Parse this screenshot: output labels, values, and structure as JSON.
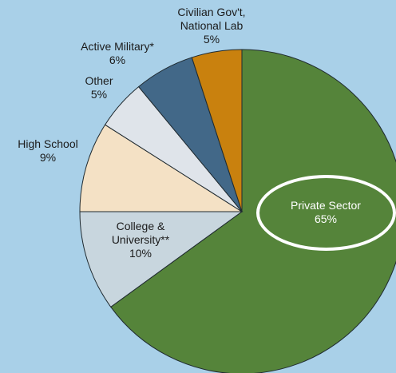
{
  "chart_data": {
    "type": "pie",
    "title": "",
    "slices": [
      {
        "label": "Private Sector\n65%",
        "value": 65,
        "color": "#55843a"
      },
      {
        "label": "College &\nUniversity**\n10%",
        "value": 10,
        "color": "#c8d6de"
      },
      {
        "label": "High School\n9%",
        "value": 9,
        "color": "#f4e1c5"
      },
      {
        "label": "Other\n5%",
        "value": 5,
        "color": "#dfe4ea"
      },
      {
        "label": "Active Military*\n6%",
        "value": 6,
        "color": "#426888"
      },
      {
        "label": "Civilian Gov't,\nNational Lab\n5%",
        "value": 5,
        "color": "#c9810e"
      }
    ],
    "highlighted_slice": "Private Sector",
    "highlight_color": "#ffffff"
  }
}
